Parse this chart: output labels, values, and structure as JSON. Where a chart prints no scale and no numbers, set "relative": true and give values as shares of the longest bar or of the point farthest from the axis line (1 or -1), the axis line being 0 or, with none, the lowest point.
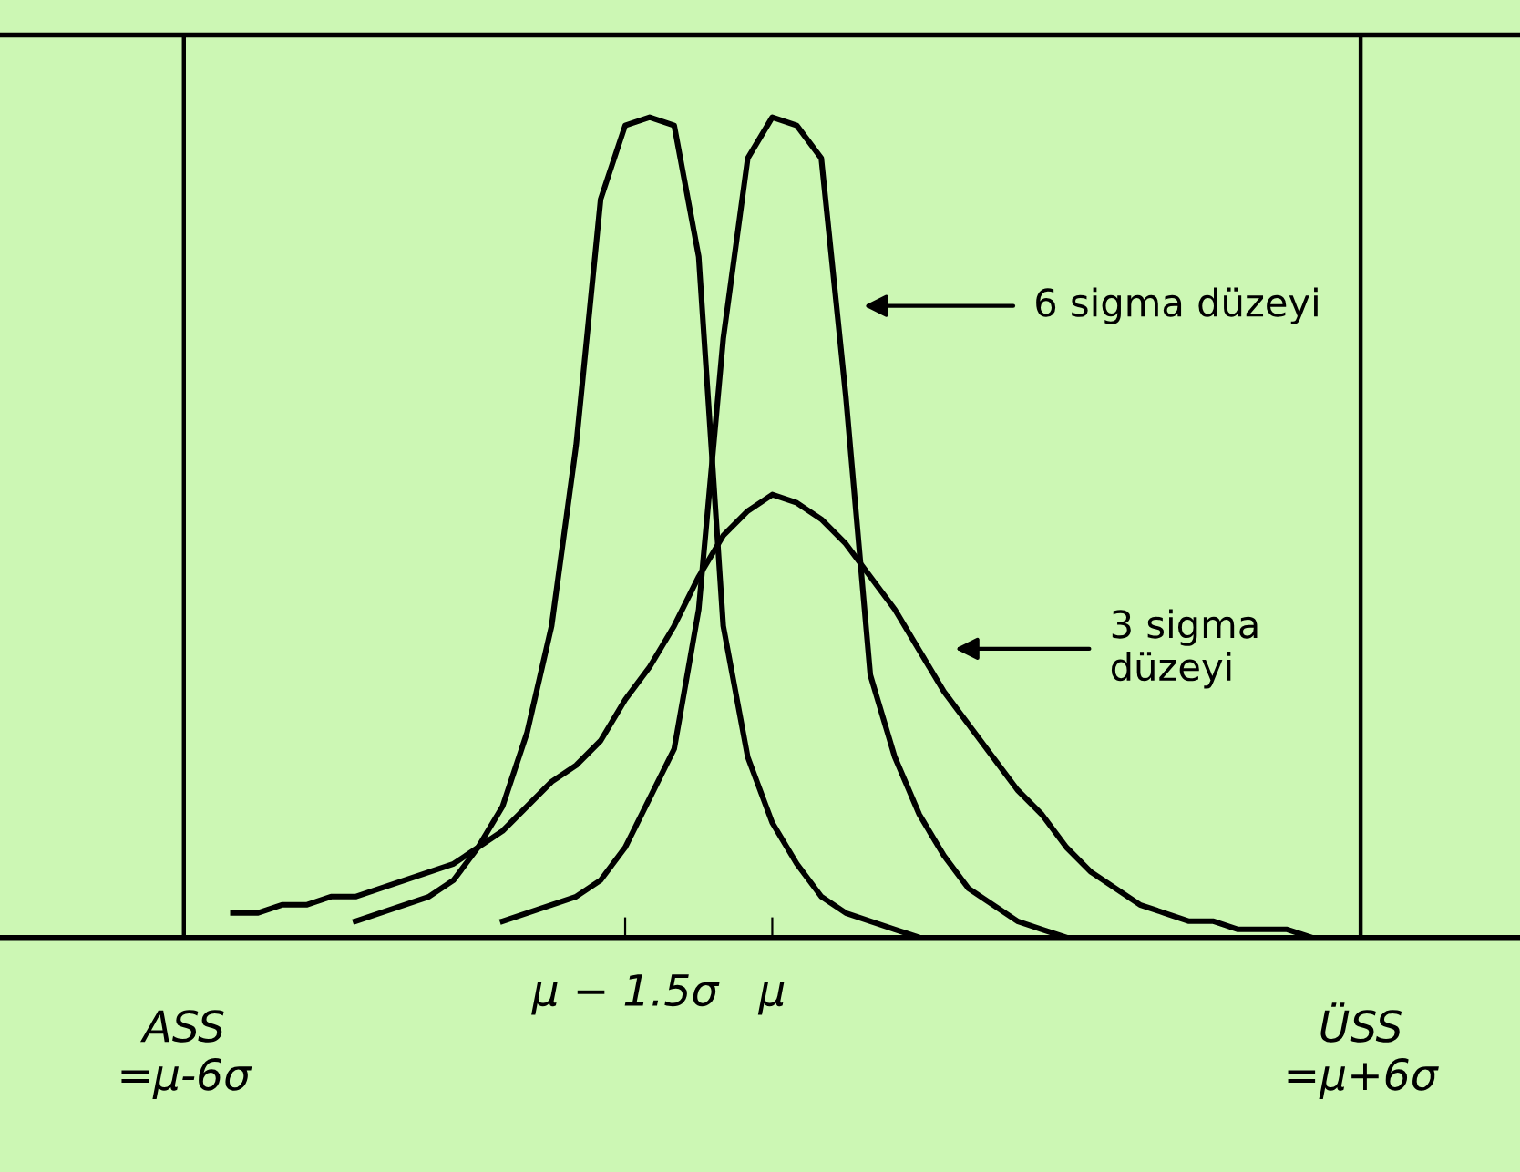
{
  "chart_data": {
    "type": "line",
    "relative": true,
    "categories": [
      null,
      null,
      null,
      null,
      "ASS\n=μ-6σ",
      null,
      null,
      null,
      null,
      null,
      null,
      null,
      null,
      null,
      null,
      null,
      null,
      null,
      null,
      null,
      null,
      null,
      "μ − 1.5σ",
      null,
      null,
      null,
      null,
      null,
      "μ",
      null,
      null,
      null,
      null,
      null,
      null,
      null,
      null,
      null,
      null,
      null,
      null,
      null,
      null,
      null,
      null,
      null,
      null,
      null,
      null,
      null,
      null,
      null,
      "ÜSS\n=μ+6σ",
      null,
      null,
      null,
      null
    ],
    "series": [
      {
        "color": "#000000",
        "values": [
          null,
          null,
          null,
          null,
          null,
          null,
          null,
          null,
          null,
          null,
          null,
          0.02,
          0.03,
          0.04,
          0.05,
          0.07,
          0.11,
          0.16,
          0.25,
          0.38,
          0.6,
          0.9,
          0.99,
          1.0,
          0.99,
          0.83,
          0.38,
          0.22,
          0.14,
          0.09,
          0.05,
          0.03,
          0.02,
          0.01,
          0,
          null,
          null,
          null,
          null,
          null,
          null,
          null,
          null,
          null,
          null,
          null,
          null,
          null,
          null,
          null,
          null,
          null,
          null,
          null,
          null,
          null,
          null
        ]
      },
      {
        "color": "#000000",
        "values": [
          null,
          null,
          null,
          null,
          null,
          null,
          null,
          null,
          null,
          null,
          null,
          null,
          null,
          null,
          null,
          null,
          null,
          0.02,
          0.03,
          0.04,
          0.05,
          0.07,
          0.11,
          0.17,
          0.23,
          0.4,
          0.73,
          0.95,
          1.0,
          0.99,
          0.95,
          0.66,
          0.32,
          0.22,
          0.15,
          0.1,
          0.06,
          0.04,
          0.02,
          0.01,
          0,
          null,
          null,
          null,
          null,
          null,
          null,
          null,
          null,
          null,
          null,
          null,
          null,
          null,
          null,
          null,
          null
        ]
      },
      {
        "color": "#000000",
        "values": [
          null,
          null,
          null,
          null,
          null,
          null,
          0.03,
          0.03,
          0.04,
          0.04,
          0.05,
          0.05,
          0.06,
          0.07,
          0.08,
          0.09,
          0.11,
          0.13,
          0.16,
          0.19,
          0.21,
          0.24,
          0.29,
          0.33,
          0.38,
          0.44,
          0.49,
          0.52,
          0.54,
          0.53,
          0.51,
          0.48,
          0.44,
          0.4,
          0.35,
          0.3,
          0.26,
          0.22,
          0.18,
          0.15,
          0.11,
          0.08,
          0.06,
          0.04,
          0.03,
          0.02,
          0.02,
          0.01,
          0.01,
          0.01,
          0,
          null,
          null,
          null,
          null,
          null,
          null
        ]
      }
    ],
    "ref_lines": [
      {
        "axis": "x",
        "value": "ASS\n=μ-6σ",
        "color": "#000000"
      },
      {
        "axis": "x",
        "value": "ÜSS\n=μ+6σ",
        "color": "#000000"
      }
    ],
    "annotations": [
      "6 sigma düzeyi",
      "3 sigma\ndüzeyi"
    ],
    "grid": false,
    "legend": false,
    "marker": "none",
    "line_style": "solid"
  }
}
